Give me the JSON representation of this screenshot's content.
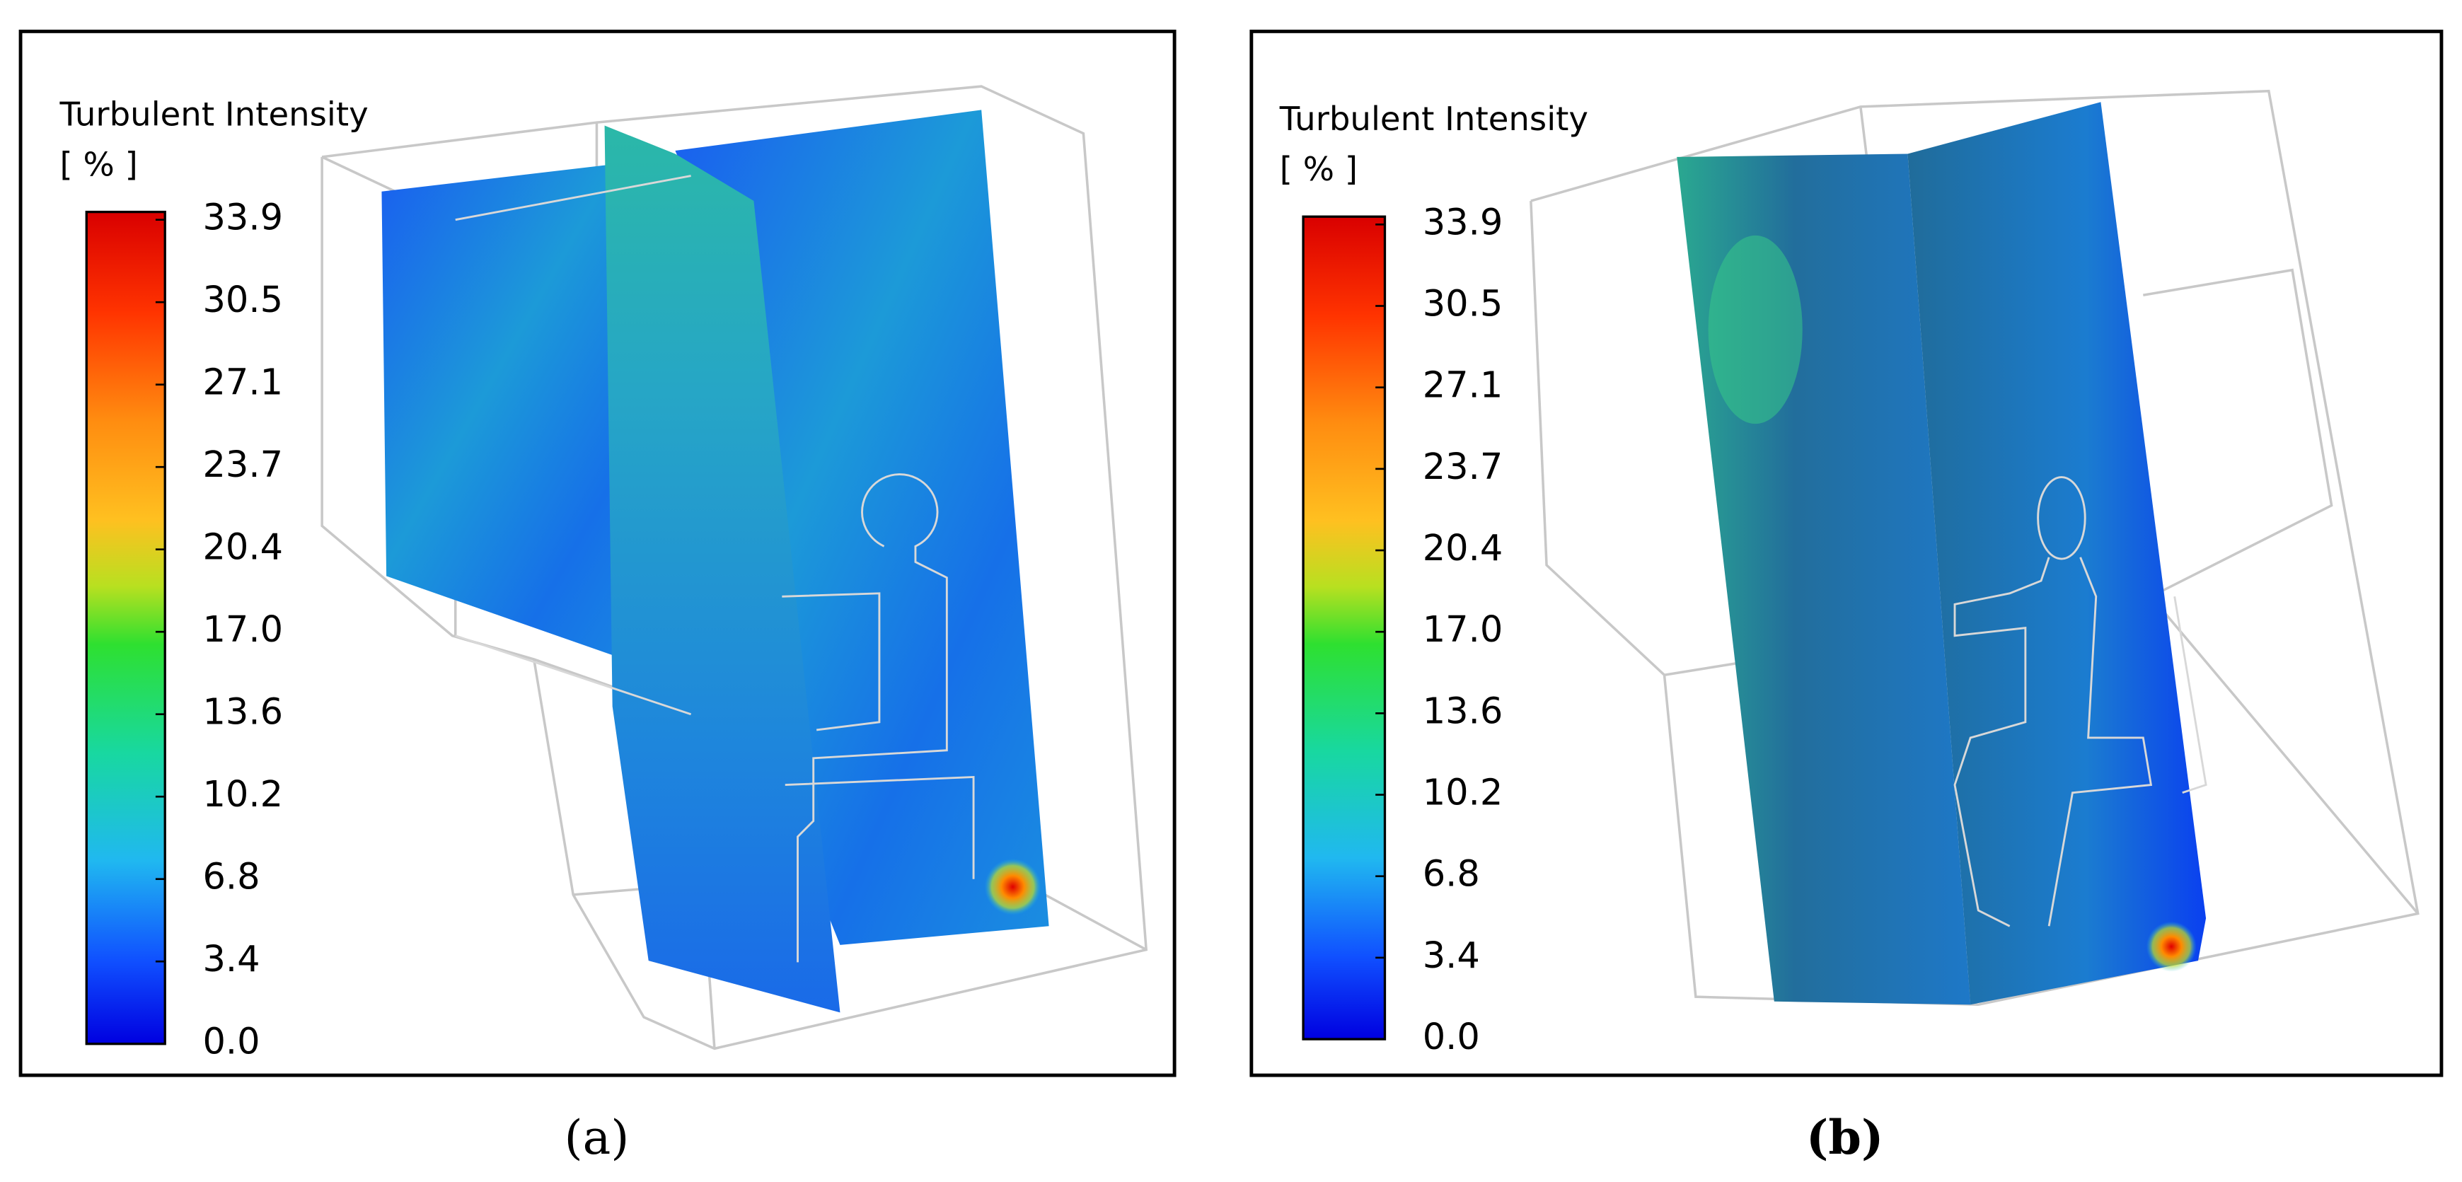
{
  "panels": [
    {
      "label": "(a)",
      "colorbar": {
        "title": "Turbulent Intensity",
        "unit": "[ % ]",
        "tick_labels": [
          "33.9",
          "30.5",
          "27.1",
          "23.7",
          "20.4",
          "17.0",
          "13.6",
          "10.2",
          "6.8",
          "3.4",
          "0.0"
        ]
      }
    },
    {
      "label": "(b)",
      "colorbar": {
        "title": "Turbulent Intensity",
        "unit": "[ % ]",
        "tick_labels": [
          "33.9",
          "30.5",
          "27.1",
          "23.7",
          "20.4",
          "17.0",
          "13.6",
          "10.2",
          "6.8",
          "3.4",
          "0.0"
        ]
      }
    }
  ]
}
